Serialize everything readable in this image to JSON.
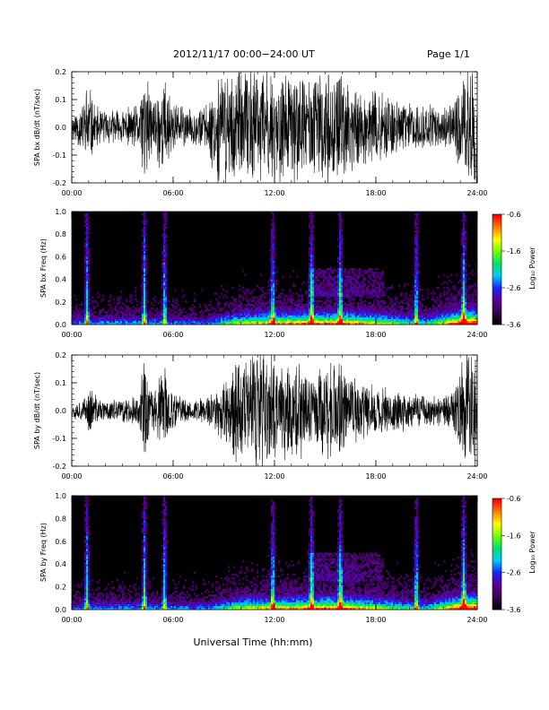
{
  "header": {
    "date_range": "2012/11/17   00:00−24:00 UT",
    "page": "Page 1/1"
  },
  "colors": {
    "trace": "#000000",
    "background": "#ffffff",
    "colormap": [
      "#000000",
      "#3a0050",
      "#5a0090",
      "#2020ff",
      "#00c8ff",
      "#00e070",
      "#70ff00",
      "#ffff00",
      "#ff8000",
      "#ff0000"
    ]
  },
  "chart_data": [
    {
      "type": "line",
      "ylabel": "SPA bx dB/dt (nT/sec)",
      "ylim": [
        -0.2,
        0.2
      ],
      "y_ticks": [
        "0.2",
        "0.1",
        "0.0",
        "-0.1",
        "-0.2"
      ],
      "x_ticks": [
        "00:00",
        "06:00",
        "12:00",
        "18:00",
        "24:00"
      ],
      "xlim_hours": [
        0,
        24
      ],
      "series": [
        {
          "envelope_amplitude": [
            [
              0,
              0.06
            ],
            [
              0.7,
              0.1
            ],
            [
              0.9,
              0.2
            ],
            [
              1.4,
              0.08
            ],
            [
              2,
              0.07
            ],
            [
              3,
              0.07
            ],
            [
              4,
              0.09
            ],
            [
              4.3,
              0.25
            ],
            [
              4.7,
              0.12
            ],
            [
              5.5,
              0.2
            ],
            [
              6,
              0.1
            ],
            [
              7,
              0.07
            ],
            [
              8,
              0.09
            ],
            [
              8.5,
              0.2
            ],
            [
              9.5,
              0.25
            ],
            [
              10,
              0.22
            ],
            [
              11,
              0.25
            ],
            [
              12,
              0.22
            ],
            [
              13,
              0.22
            ],
            [
              14,
              0.2
            ],
            [
              15,
              0.22
            ],
            [
              16,
              0.2
            ],
            [
              17,
              0.16
            ],
            [
              18,
              0.14
            ],
            [
              19,
              0.12
            ],
            [
              20,
              0.1
            ],
            [
              21,
              0.09
            ],
            [
              22,
              0.08
            ],
            [
              22.5,
              0.09
            ],
            [
              23.2,
              0.2
            ],
            [
              23.4,
              0.25
            ],
            [
              24,
              0.25
            ]
          ]
        }
      ]
    },
    {
      "type": "heatmap",
      "ylabel": "SPA bx Freq (Hz)",
      "ylim": [
        0.0,
        1.0
      ],
      "y_ticks": [
        "1.0",
        "0.8",
        "0.6",
        "0.4",
        "0.2",
        "0.0"
      ],
      "x_ticks": [
        "00:00",
        "06:00",
        "12:00",
        "18:00",
        "24:00"
      ],
      "colorbar": {
        "label": "Log₁₀ Power",
        "ticks": [
          "-0.6",
          "-1.6",
          "-2.6",
          "-3.6"
        ],
        "range": [
          -3.6,
          -0.6
        ]
      },
      "bursts_hours": [
        0.9,
        4.3,
        5.5,
        11.9,
        14.2,
        15.9,
        20.4,
        23.2
      ],
      "activity_profile": [
        [
          0,
          0.3
        ],
        [
          4,
          0.35
        ],
        [
          8,
          0.3
        ],
        [
          10,
          0.6
        ],
        [
          13,
          0.7
        ],
        [
          16,
          0.75
        ],
        [
          18,
          0.6
        ],
        [
          21,
          0.4
        ],
        [
          23.3,
          0.9
        ],
        [
          24,
          0.9
        ]
      ]
    },
    {
      "type": "line",
      "ylabel": "SPA by dB/dt (nT/sec)",
      "ylim": [
        -0.2,
        0.2
      ],
      "y_ticks": [
        "0.2",
        "0.1",
        "0.0",
        "-0.1",
        "-0.2"
      ],
      "x_ticks": [
        "00:00",
        "06:00",
        "12:00",
        "18:00",
        "24:00"
      ],
      "xlim_hours": [
        0,
        24
      ],
      "series": [
        {
          "envelope_amplitude": [
            [
              0,
              0.03
            ],
            [
              0.8,
              0.05
            ],
            [
              1.1,
              0.1
            ],
            [
              1.5,
              0.05
            ],
            [
              2,
              0.04
            ],
            [
              3,
              0.05
            ],
            [
              4,
              0.06
            ],
            [
              4.3,
              0.22
            ],
            [
              4.7,
              0.08
            ],
            [
              5.5,
              0.18
            ],
            [
              6,
              0.07
            ],
            [
              7,
              0.04
            ],
            [
              8,
              0.06
            ],
            [
              9,
              0.12
            ],
            [
              9.7,
              0.25
            ],
            [
              10.5,
              0.22
            ],
            [
              11.5,
              0.25
            ],
            [
              12.5,
              0.2
            ],
            [
              13.5,
              0.22
            ],
            [
              14.5,
              0.16
            ],
            [
              15.3,
              0.2
            ],
            [
              16,
              0.18
            ],
            [
              17,
              0.12
            ],
            [
              18,
              0.1
            ],
            [
              19,
              0.08
            ],
            [
              20,
              0.08
            ],
            [
              21,
              0.06
            ],
            [
              22,
              0.06
            ],
            [
              22.5,
              0.08
            ],
            [
              23.2,
              0.2
            ],
            [
              23.4,
              0.25
            ],
            [
              24,
              0.25
            ]
          ]
        }
      ]
    },
    {
      "type": "heatmap",
      "ylabel": "SPA by Freq (Hz)",
      "ylim": [
        0.0,
        1.0
      ],
      "y_ticks": [
        "1.0",
        "0.8",
        "0.6",
        "0.4",
        "0.2",
        "0.0"
      ],
      "x_ticks": [
        "00:00",
        "06:00",
        "12:00",
        "18:00",
        "24:00"
      ],
      "xlabel": "Universal Time (hh:mm)",
      "colorbar": {
        "label": "Log₁₀ Power",
        "ticks": [
          "-0.6",
          "-1.6",
          "-2.6",
          "-3.6"
        ],
        "range": [
          -3.6,
          -0.6
        ]
      },
      "bursts_hours": [
        0.9,
        4.3,
        5.5,
        11.9,
        14.2,
        15.9,
        20.4,
        23.2
      ],
      "activity_profile": [
        [
          0,
          0.3
        ],
        [
          4,
          0.35
        ],
        [
          8,
          0.3
        ],
        [
          10,
          0.6
        ],
        [
          13,
          0.7
        ],
        [
          16,
          0.75
        ],
        [
          18,
          0.6
        ],
        [
          21,
          0.4
        ],
        [
          23.3,
          0.9
        ],
        [
          24,
          0.9
        ]
      ]
    }
  ]
}
